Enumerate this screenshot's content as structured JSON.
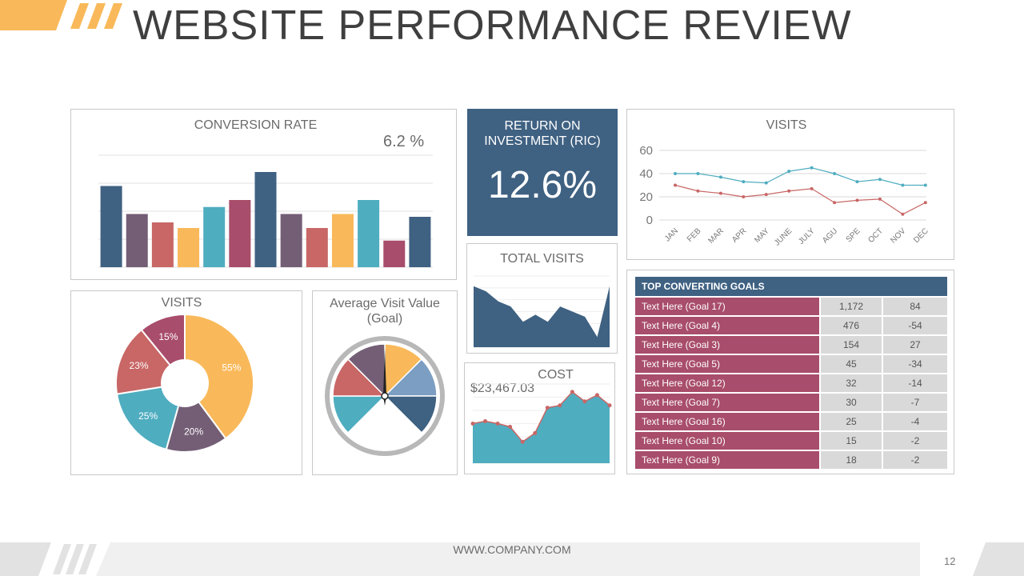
{
  "header": {
    "title": "WEBSITE PERFORMANCE REVIEW"
  },
  "colors": {
    "orange": "#f9b95a",
    "navy": "#3f6182",
    "plum": "#745e76",
    "red": "#c86766",
    "teal": "#4fadc0",
    "magenta": "#a84d6b",
    "gray": "#c8c8c8"
  },
  "conversion": {
    "title": "CONVERSION RATE",
    "value_label": "6.2 %",
    "chart_data": {
      "type": "bar",
      "values": [
        58,
        38,
        32,
        28,
        43,
        48,
        68,
        38,
        28,
        38,
        48,
        19,
        36
      ],
      "ylim": [
        0,
        80
      ],
      "grid": true
    }
  },
  "roi": {
    "title": "RETURN ON INVESTMENT (RIC)",
    "value": "12.6%"
  },
  "visits_line": {
    "title": "VISITS",
    "chart_data": {
      "type": "line",
      "categories": [
        "JAN",
        "FEB",
        "MAR",
        "APR",
        "MAY",
        "JUNE",
        "JULY",
        "AGU",
        "SPE",
        "OCT",
        "NOV",
        "DEC"
      ],
      "series": [
        {
          "values": [
            40,
            40,
            37,
            33,
            32,
            42,
            45,
            40,
            33,
            35,
            30,
            30
          ]
        },
        {
          "values": [
            30,
            25,
            23,
            20,
            22,
            25,
            27,
            15,
            17,
            18,
            5,
            15
          ]
        }
      ],
      "ylim": [
        0,
        60
      ],
      "yticks": [
        0,
        20,
        40,
        60
      ],
      "grid": true
    }
  },
  "total_visits": {
    "title": "TOTAL VISITS",
    "chart_data": {
      "type": "area",
      "values": [
        60,
        55,
        45,
        40,
        25,
        32,
        25,
        40,
        35,
        30,
        10,
        60
      ],
      "ylim": [
        0,
        70
      ]
    }
  },
  "cost": {
    "title": "COST",
    "value_label": "$23,467.03",
    "chart_data": {
      "type": "area",
      "values": [
        50,
        53,
        50,
        46,
        27,
        38,
        70,
        73,
        90,
        78,
        86,
        73
      ],
      "ylim": [
        0,
        100
      ]
    }
  },
  "visits_pie": {
    "title": "VISITS",
    "chart_data": {
      "type": "pie",
      "slices": [
        {
          "label": "55%",
          "value": 55
        },
        {
          "label": "20%",
          "value": 20
        },
        {
          "label": "25%",
          "value": 25
        },
        {
          "label": "23%",
          "value": 23
        },
        {
          "label": "15%",
          "value": 15
        }
      ]
    }
  },
  "avg_visit": {
    "title_line1": "Average Visit Value",
    "title_line2": "(Goal)",
    "chart_data": {
      "type": "pie",
      "slices": [
        1,
        1,
        1,
        1,
        1,
        1,
        1,
        1
      ]
    }
  },
  "goals": {
    "title": "TOP CONVERTING GOALS",
    "rows": [
      {
        "name": "Text Here (Goal 17)",
        "value": "1,172",
        "change": "84"
      },
      {
        "name": "Text Here (Goal 4)",
        "value": "476",
        "change": "-54"
      },
      {
        "name": "Text Here (Goal 3)",
        "value": "154",
        "change": "27"
      },
      {
        "name": "Text Here (Goal 5)",
        "value": "45",
        "change": "-34"
      },
      {
        "name": "Text Here (Goal 12)",
        "value": "32",
        "change": "-14"
      },
      {
        "name": "Text Here (Goal 7)",
        "value": "30",
        "change": "-7"
      },
      {
        "name": "Text Here (Goal 16)",
        "value": "25",
        "change": "-4"
      },
      {
        "name": "Text Here (Goal 10)",
        "value": "15",
        "change": "-2"
      },
      {
        "name": "Text Here (Goal 9)",
        "value": "18",
        "change": "-2"
      }
    ]
  },
  "footer": {
    "url": "WWW.COMPANY.COM",
    "page": "12"
  }
}
